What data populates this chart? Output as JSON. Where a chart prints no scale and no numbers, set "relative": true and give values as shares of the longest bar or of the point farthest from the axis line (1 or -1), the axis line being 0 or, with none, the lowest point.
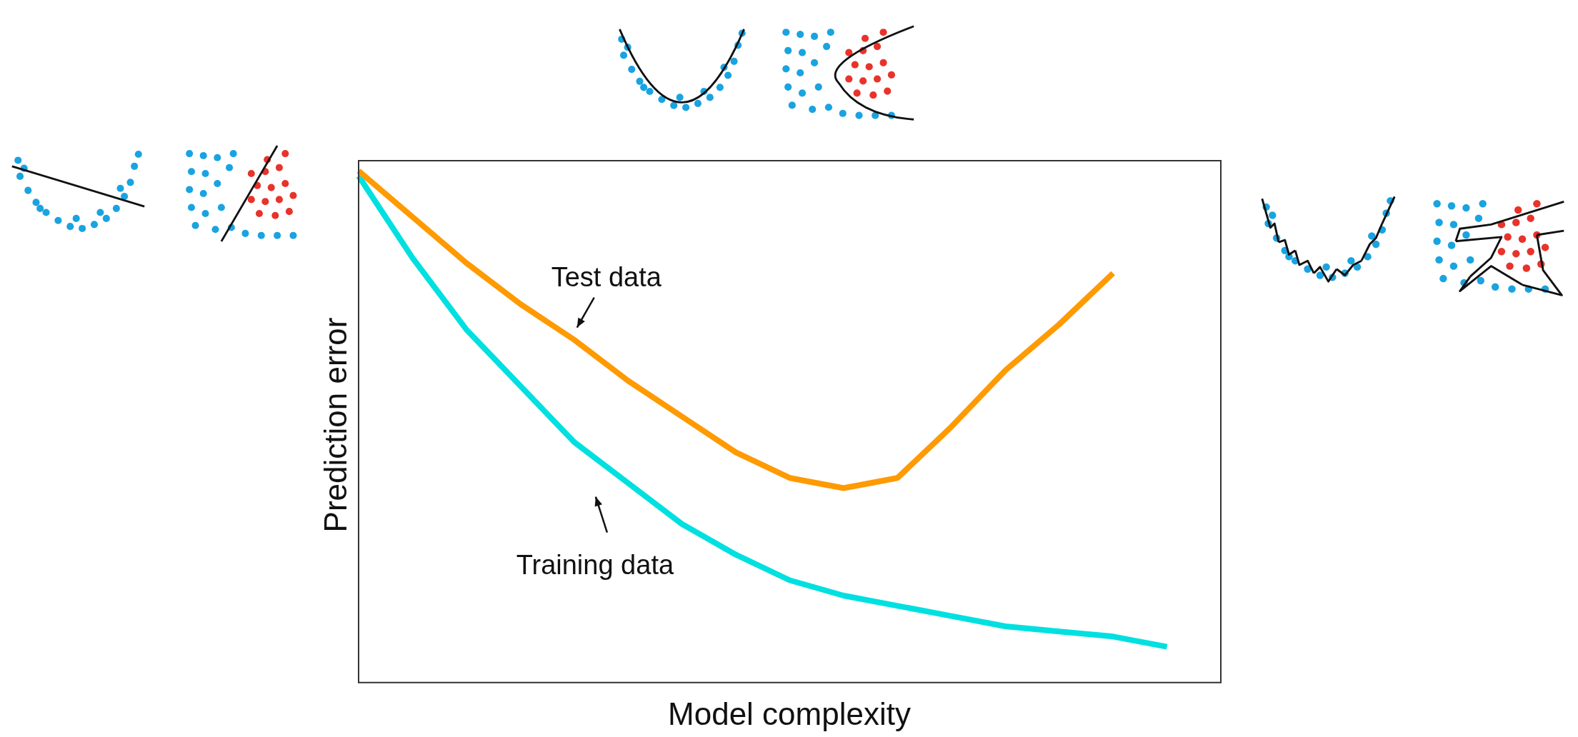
{
  "chart_data": {
    "type": "line",
    "relative": true,
    "xlabel": "Model complexity",
    "ylabel": "Prediction error",
    "legend": false,
    "marker": "none",
    "line_style": "solid",
    "categories": [
      null,
      null,
      null,
      null,
      null,
      null,
      null,
      null,
      null,
      null,
      null,
      null,
      null,
      null,
      null,
      null,
      null
    ],
    "series": [
      {
        "color": "#ff9a00",
        "values": [
          1,
          0.91,
          0.82,
          0.74,
          0.67,
          0.59,
          0.52,
          0.45,
          0.4,
          0.38,
          0.4,
          0.5,
          0.61,
          0.7,
          0.8,
          null,
          null
        ]
      },
      {
        "color": "#00e0e0",
        "values": [
          0.99,
          0.83,
          0.69,
          0.58,
          0.47,
          0.39,
          0.31,
          0.25,
          0.2,
          0.17,
          0.15,
          0.13,
          0.11,
          0.1,
          0.09,
          0.07,
          null
        ]
      }
    ],
    "annotations": [
      "Test data",
      "Training data"
    ]
  }
}
